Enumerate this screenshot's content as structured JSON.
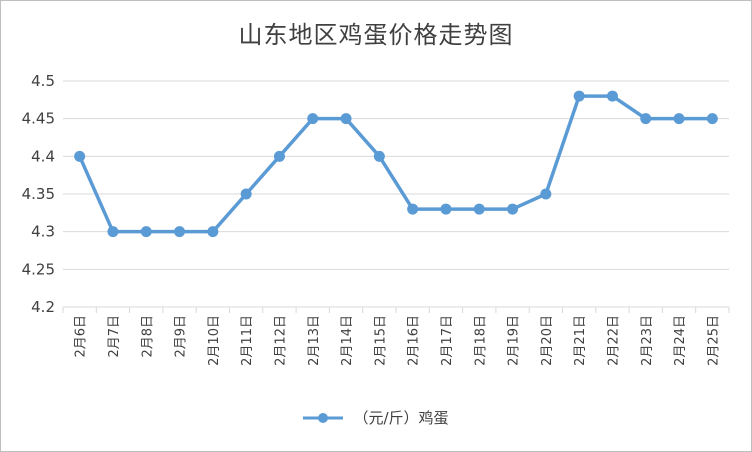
{
  "chart_data": {
    "type": "line",
    "title": "山东地区鸡蛋价格走势图",
    "categories": [
      "2月6日",
      "2月7日",
      "2月8日",
      "2月9日",
      "2月10日",
      "2月11日",
      "2月12日",
      "2月13日",
      "2月14日",
      "2月15日",
      "2月16日",
      "2月17日",
      "2月18日",
      "2月19日",
      "2月20日",
      "2月21日",
      "2月22日",
      "2月23日",
      "2月24日",
      "2月25日"
    ],
    "series": [
      {
        "name": "（元/斤）鸡蛋",
        "values": [
          4.4,
          4.3,
          4.3,
          4.3,
          4.3,
          4.35,
          4.4,
          4.45,
          4.45,
          4.4,
          4.33,
          4.33,
          4.33,
          4.33,
          4.35,
          4.48,
          4.48,
          4.45,
          4.45,
          4.45
        ],
        "color": "#5b9bd5"
      }
    ],
    "ylim": [
      4.2,
      4.5
    ],
    "yticks": [
      "4.2",
      "4.25",
      "4.3",
      "4.35",
      "4.4",
      "4.45",
      "4.5"
    ],
    "grid": true,
    "legend_position": "bottom"
  }
}
